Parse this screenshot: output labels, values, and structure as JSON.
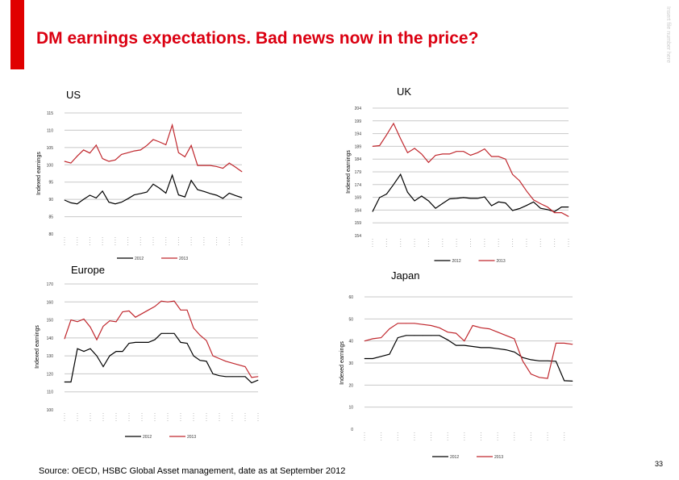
{
  "slide": {
    "title": "DM earnings expectations. Bad news now in the price?",
    "side_note": "Insert file number here",
    "source": "Source: OECD, HSBC Global Asset management,  date as at September 2012",
    "page_number": "33",
    "accent_color": "#db0011"
  },
  "chart_data": [
    {
      "type": "line",
      "title": "US",
      "ylabel": "Indexed earnings",
      "ylim": [
        80,
        115
      ],
      "yticks": [
        "80",
        "85",
        "90",
        "95",
        "100",
        "105",
        "110",
        "115"
      ],
      "grid": true,
      "legend": "bottom",
      "series": [
        {
          "name": "2012",
          "color": "#000000",
          "values": [
            89.8,
            89,
            88.7,
            90,
            91.2,
            90.4,
            92.4,
            89.2,
            88.7,
            89.2,
            90.2,
            91.3,
            91.7,
            92.1,
            94.4,
            93.2,
            91.8,
            97,
            91.3,
            90.7,
            95.5,
            92.8,
            92.3,
            91.7,
            91.2,
            90.3,
            91.8,
            91.1,
            90.5
          ]
        },
        {
          "name": "2013",
          "color": "#c0272d",
          "values": [
            101,
            100.5,
            102.5,
            104.3,
            103.4,
            105.7,
            101.8,
            101,
            101.4,
            103,
            103.5,
            104,
            104.3,
            105.6,
            107.3,
            106.6,
            105.8,
            111.5,
            103.5,
            102.3,
            105.6,
            99.8,
            99.8,
            99.8,
            99.5,
            99,
            100.5,
            99.3,
            98
          ]
        }
      ]
    },
    {
      "type": "line",
      "title": "UK",
      "ylabel": "Indexed earnings",
      "ylim": [
        154,
        204
      ],
      "yticks": [
        "154",
        "159",
        "164",
        "169",
        "174",
        "179",
        "184",
        "189",
        "194",
        "199",
        "204"
      ],
      "grid": true,
      "legend": "bottom",
      "series": [
        {
          "name": "2012",
          "color": "#000000",
          "values": [
            163.4,
            168.9,
            170.3,
            174,
            178,
            171,
            167.6,
            169.5,
            167.6,
            164.7,
            166.6,
            168.4,
            168.6,
            168.9,
            168.6,
            168.6,
            169.2,
            165.7,
            167.2,
            166.8,
            163.8,
            164.6,
            165.8,
            167.2,
            164.7,
            164.2,
            163.4,
            165.2,
            165.2
          ]
        },
        {
          "name": "2013",
          "color": "#c0272d",
          "values": [
            189,
            189.3,
            193.5,
            198,
            192,
            186.5,
            188.2,
            186,
            182.7,
            185.5,
            186,
            186,
            187,
            187,
            185.5,
            186.5,
            188,
            185,
            185,
            184,
            178,
            175.5,
            171.5,
            168,
            166.5,
            165.2,
            163,
            163,
            161.5
          ]
        }
      ]
    },
    {
      "type": "line",
      "title": "Europe",
      "ylabel": "Indexed earnings",
      "ylim": [
        100,
        170
      ],
      "yticks": [
        "100",
        "110",
        "120",
        "130",
        "140",
        "150",
        "160",
        "170"
      ],
      "grid": true,
      "legend": "bottom",
      "series": [
        {
          "name": "2012",
          "color": "#000000",
          "values": [
            115.5,
            115.5,
            134,
            132.5,
            134,
            130,
            124,
            130,
            132.5,
            132.5,
            137,
            137.5,
            137.5,
            137.5,
            139,
            142.5,
            142.5,
            142.5,
            137.5,
            137,
            130,
            127.5,
            127,
            120,
            119,
            118.5,
            118.5,
            118.5,
            118.5,
            115,
            116.5
          ]
        },
        {
          "name": "2013",
          "color": "#c0272d",
          "values": [
            139.5,
            150,
            149,
            150.5,
            146,
            139,
            146.5,
            149.5,
            149,
            154.5,
            155,
            151.5,
            153.5,
            155.5,
            157.5,
            160.5,
            160,
            160.5,
            155.5,
            155.5,
            145.5,
            141.5,
            138.5,
            130,
            128.5,
            127,
            126,
            125,
            124,
            118,
            118.5
          ]
        }
      ]
    },
    {
      "type": "line",
      "title": "Japan",
      "ylabel": "Indexed earnings",
      "ylim": [
        0,
        60
      ],
      "yticks": [
        "0",
        "10",
        "20",
        "30",
        "40",
        "50",
        "60"
      ],
      "grid": true,
      "legend": "bottom",
      "series": [
        {
          "name": "2012",
          "color": "#000000",
          "values": [
            32,
            32,
            33,
            34,
            41.5,
            42.5,
            42.5,
            42.5,
            42.5,
            42.5,
            40.5,
            38,
            38,
            37.5,
            37,
            37,
            36.5,
            36,
            35,
            32.5,
            31.5,
            31,
            31,
            30.8,
            22,
            21.8
          ]
        },
        {
          "name": "2013",
          "color": "#c0272d",
          "values": [
            40,
            41,
            41.5,
            45.5,
            48,
            48,
            48,
            47.5,
            47,
            46,
            44,
            43.5,
            40,
            47,
            46,
            45.5,
            44,
            42.5,
            41,
            31,
            25,
            23.5,
            23,
            39,
            39,
            38.5
          ]
        }
      ]
    }
  ]
}
